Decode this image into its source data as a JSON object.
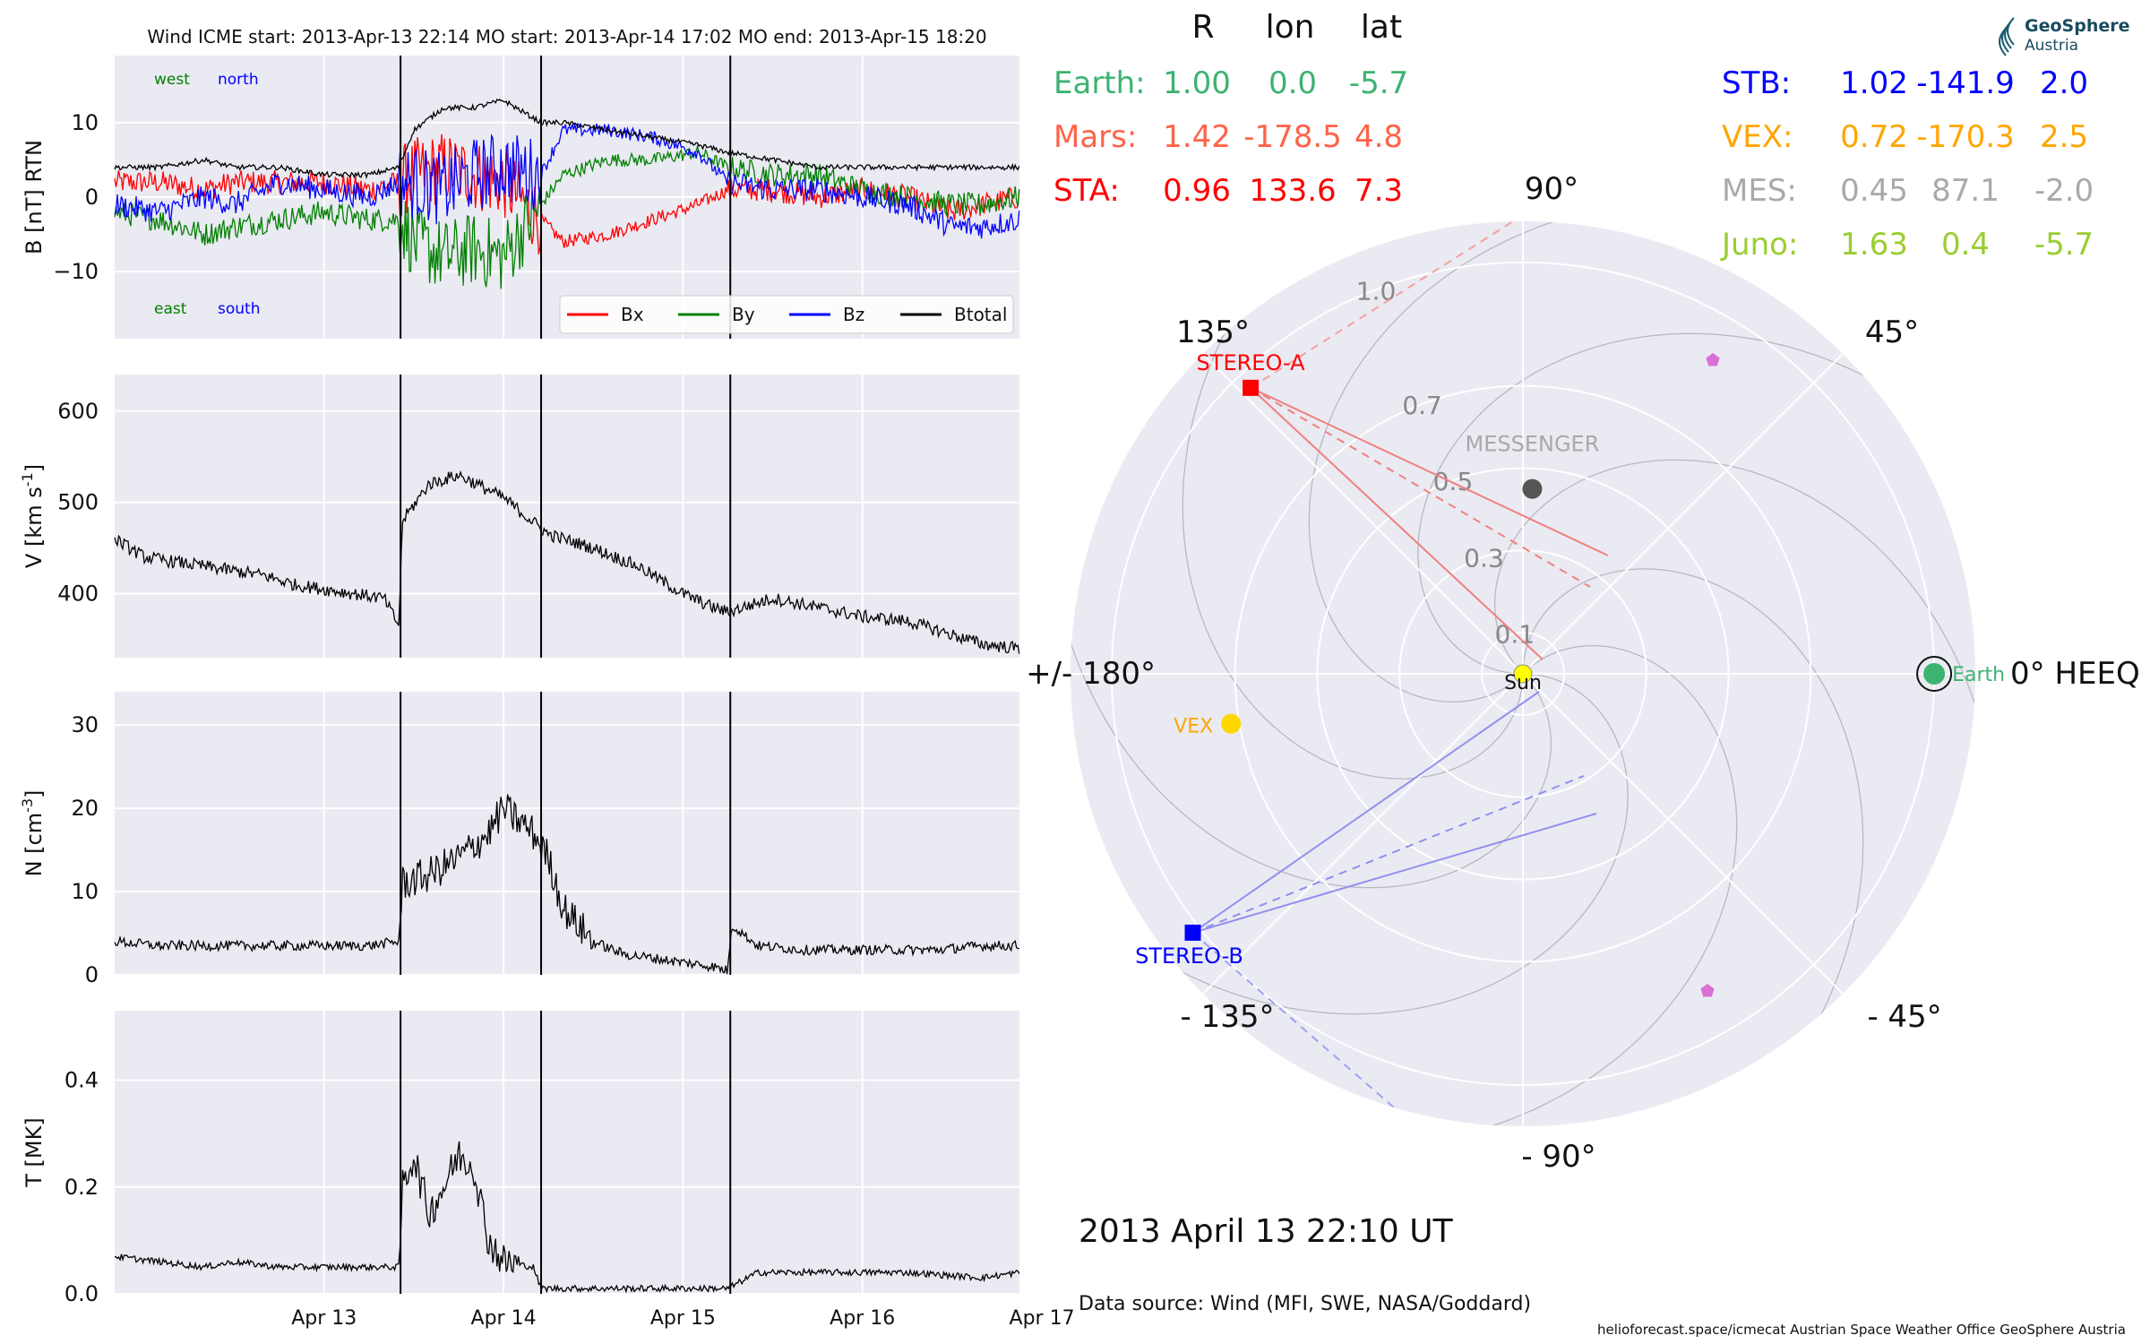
{
  "header": {
    "title": "Wind    ICME start: 2013-Apr-13 22:14   MO start: 2013-Apr-14 17:02   MO end: 2013-Apr-15 18:20"
  },
  "timeseries": {
    "x_ticks": [
      "Apr 13",
      "Apr 14",
      "Apr 15",
      "Apr 16",
      "Apr 17"
    ],
    "event_lines_hours": [
      22.23,
      41.03,
      66.33
    ],
    "x_range_hours": [
      -16,
      105
    ]
  },
  "magnetic_panel": {
    "ylabel": "B [nT] RTN",
    "ylim": [
      -19,
      19
    ],
    "yticks": [
      10,
      0,
      -10
    ],
    "annotations": {
      "west": "west",
      "north": "north",
      "east": "east",
      "south": "south"
    },
    "legend": [
      "Bx",
      "By",
      "Bz",
      "Btotal"
    ]
  },
  "speed_panel": {
    "ylabel": "V [km s",
    "ylabel_sup": "-1",
    "ylabel_end": "]",
    "ylim": [
      330,
      640
    ],
    "yticks": [
      600,
      500,
      400
    ]
  },
  "density_panel": {
    "ylabel": "N [cm",
    "ylabel_sup": "-3",
    "ylabel_end": "]",
    "ylim": [
      0,
      34
    ],
    "yticks": [
      30,
      20,
      10,
      0
    ]
  },
  "temperature_panel": {
    "ylabel": "T [MK]",
    "ylim": [
      0,
      0.53
    ],
    "yticks": [
      "0.4",
      "0.2",
      "0.0"
    ]
  },
  "position_table": {
    "headers": [
      "R",
      "lon",
      "lat"
    ],
    "left_rows": [
      {
        "name": "Earth:",
        "r": "1.00",
        "lon": "0.0",
        "lat": "-5.7",
        "color": "#3cb371"
      },
      {
        "name": "Mars:",
        "r": "1.42",
        "lon": "-178.5",
        "lat": "4.8",
        "color": "#ff6347"
      },
      {
        "name": "STA:",
        "r": "0.96",
        "lon": "133.6",
        "lat": "7.3",
        "color": "#ff0000"
      }
    ],
    "right_rows": [
      {
        "name": "STB:",
        "r": "1.02",
        "lon": "-141.9",
        "lat": "2.0",
        "color": "#0000ff"
      },
      {
        "name": "VEX:",
        "r": "0.72",
        "lon": "-170.3",
        "lat": "2.5",
        "color": "#ffa500"
      },
      {
        "name": "MES:",
        "r": "0.45",
        "lon": "87.1",
        "lat": "-2.0",
        "color": "#a9a9a9"
      },
      {
        "name": "Juno:",
        "r": "1.63",
        "lon": "0.4",
        "lat": "-5.7",
        "color": "#9acd32"
      }
    ]
  },
  "logo": {
    "line1": "GeoSphere",
    "line2": "Austria"
  },
  "polar": {
    "angle_labels": [
      "90°",
      "45°",
      "0° HEEQ",
      "- 45°",
      "- 90°",
      "- 135°",
      "+/- 180°",
      "135°"
    ],
    "radial_labels": [
      "0.1",
      "0.3",
      "0.5",
      "0.7",
      "1.0"
    ],
    "bodies": {
      "sun": "Sun",
      "earth": "Earth",
      "sta": "STEREO-A",
      "stb": "STEREO-B",
      "vex": "VEX",
      "mes": "MESSENGER"
    }
  },
  "date_label": "2013 April 13  22:10 UT",
  "data_source": "Data source: Wind (MFI, SWE, NASA/Goddard)",
  "credits": "helioforecast.space/icmecat   Austrian Space Weather Office   GeoSphere Austria",
  "colors": {
    "bx": "#ff0000",
    "by": "#008000",
    "bz": "#0000ff",
    "btotal": "#000000",
    "panel_bg": "#eaeaf2",
    "sta": "#ff0000",
    "stb": "#0000ff",
    "earth": "#3cb371",
    "vex": "#ffd700",
    "mes": "#555555",
    "sun": "#ffff00"
  },
  "chart_data": [
    {
      "type": "line",
      "title": "Wind    ICME start: 2013-Apr-13 22:14   MO start: 2013-Apr-14 17:02   MO end: 2013-Apr-15 18:20",
      "ylabel": "B [nT] RTN",
      "x_hours_since_2013-04-13": [
        -16,
        -10,
        -4,
        0,
        6,
        12,
        18,
        22,
        24,
        28,
        32,
        36,
        41,
        44,
        50,
        56,
        62,
        66,
        72,
        78,
        84,
        90,
        96,
        100,
        105
      ],
      "series": [
        {
          "name": "Bx",
          "values": [
            2,
            2,
            1,
            2,
            2,
            2,
            1,
            2,
            3,
            4,
            3,
            2,
            -3,
            -6,
            -5,
            -3,
            -1,
            1,
            1,
            0,
            1,
            0,
            -2,
            -1,
            0
          ]
        },
        {
          "name": "By",
          "values": [
            -2,
            -3,
            -5,
            -4,
            -3,
            -2,
            -3,
            -3,
            -6,
            -8,
            -7,
            -8,
            -1,
            3,
            5,
            5,
            6,
            4,
            3,
            3,
            1,
            0,
            -1,
            -1,
            0
          ]
        },
        {
          "name": "Bz",
          "values": [
            -1,
            -2,
            0,
            -1,
            2,
            1,
            0,
            2,
            2,
            1,
            3,
            4,
            3,
            9,
            9,
            8,
            6,
            2,
            1,
            1,
            0,
            -1,
            -4,
            -4,
            -3
          ]
        },
        {
          "name": "Btotal",
          "values": [
            4,
            4,
            5,
            4,
            4,
            3,
            3,
            4,
            9,
            12,
            12,
            13,
            10,
            10,
            9,
            8,
            7,
            6,
            5,
            4,
            4,
            4,
            4,
            4,
            4
          ]
        }
      ],
      "ylim": [
        -19,
        19
      ]
    },
    {
      "type": "line",
      "ylabel": "V [km s-1]",
      "x_hours_since_2013-04-13": [
        -16,
        -12,
        -8,
        -4,
        0,
        4,
        8,
        12,
        16,
        20,
        22,
        22.5,
        26,
        30,
        36,
        42,
        48,
        54,
        60,
        64,
        66,
        72,
        78,
        84,
        90,
        96,
        100,
        105
      ],
      "series": [
        {
          "name": "V",
          "values": [
            460,
            440,
            435,
            430,
            425,
            420,
            410,
            405,
            400,
            395,
            365,
            480,
            520,
            530,
            505,
            465,
            450,
            430,
            400,
            385,
            380,
            395,
            385,
            375,
            370,
            355,
            345,
            340
          ]
        }
      ],
      "ylim": [
        330,
        640
      ]
    },
    {
      "type": "line",
      "ylabel": "N [cm-3]",
      "x_hours_since_2013-04-13": [
        -16,
        -10,
        -4,
        0,
        6,
        12,
        18,
        22,
        22.5,
        26,
        30,
        34,
        36,
        40,
        42,
        44,
        48,
        52,
        56,
        60,
        64,
        66,
        66.5,
        70,
        76,
        82,
        88,
        94,
        100,
        105
      ],
      "series": [
        {
          "name": "N",
          "values": [
            4,
            3.5,
            3.5,
            3.5,
            3.5,
            3.5,
            3.5,
            4,
            11,
            12,
            14,
            17,
            20,
            17,
            14,
            8,
            4,
            2.5,
            2,
            1.5,
            1,
            0.5,
            6,
            3.5,
            3,
            3,
            3,
            3,
            3.5,
            3.5
          ]
        }
      ],
      "ylim": [
        0,
        34
      ]
    },
    {
      "type": "line",
      "ylabel": "T [MK]",
      "x_hours_since_2013-04-13": [
        -16,
        -10,
        -4,
        0,
        6,
        12,
        18,
        22,
        22.5,
        24,
        26,
        28,
        30,
        32,
        34,
        36,
        40,
        41,
        48,
        56,
        64,
        66,
        70,
        80,
        90,
        100,
        105
      ],
      "series": [
        {
          "name": "T",
          "values": [
            0.07,
            0.06,
            0.05,
            0.06,
            0.05,
            0.05,
            0.05,
            0.05,
            0.2,
            0.26,
            0.15,
            0.2,
            0.26,
            0.24,
            0.1,
            0.06,
            0.05,
            0.01,
            0.01,
            0.01,
            0.01,
            0.01,
            0.04,
            0.04,
            0.04,
            0.03,
            0.04
          ]
        }
      ],
      "ylim": [
        0,
        0.53
      ]
    },
    {
      "type": "scatter",
      "subtype": "polar",
      "radial_ticks": [
        0.1,
        0.3,
        0.5,
        0.7,
        1.0
      ],
      "r_max_au": 1.1,
      "points": [
        {
          "name": "Sun",
          "r": 0.0,
          "lon": 0.0
        },
        {
          "name": "Earth",
          "r": 1.0,
          "lon": 0.0
        },
        {
          "name": "STEREO-A",
          "r": 0.96,
          "lon": 133.6
        },
        {
          "name": "STEREO-B",
          "r": 1.02,
          "lon": -141.9
        },
        {
          "name": "VEX",
          "r": 0.72,
          "lon": -170.3
        },
        {
          "name": "MESSENGER",
          "r": 0.45,
          "lon": 87.1
        }
      ]
    }
  ]
}
